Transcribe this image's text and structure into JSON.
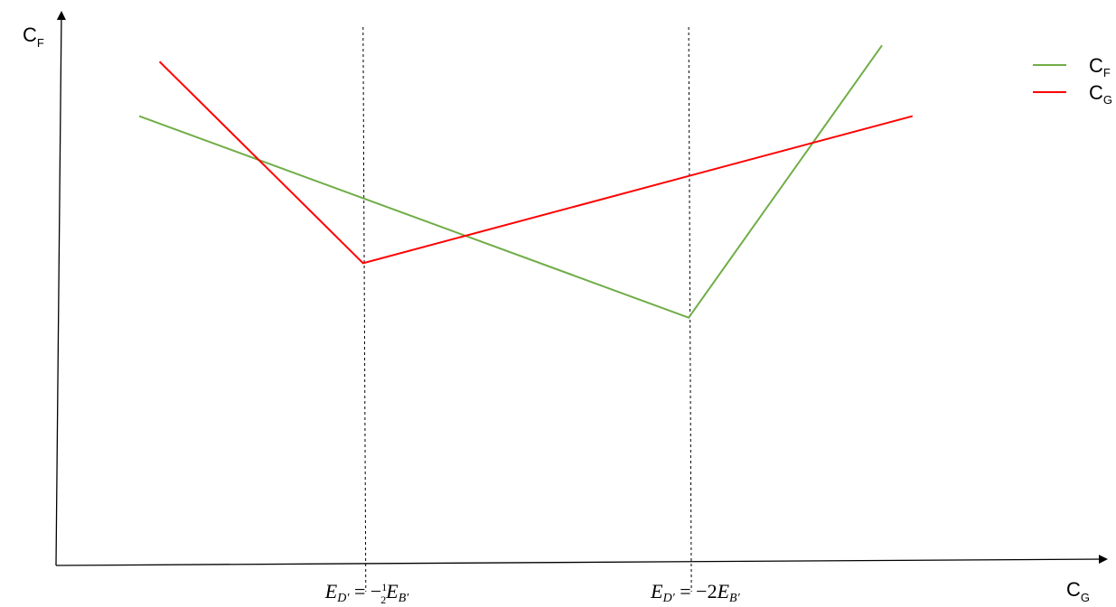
{
  "chart_data": {
    "type": "line",
    "title": "",
    "ylabel": {
      "main": "C",
      "sub": "F"
    },
    "xlabel": {
      "main": "C",
      "sub": "G"
    },
    "grid": false,
    "legend_placement": "top-right",
    "xlim": [
      0,
      100
    ],
    "ylim": [
      0,
      100
    ],
    "reference_lines": [
      {
        "x": 30,
        "label": {
          "lhs": "E",
          "lhs_sub": "D′",
          "eq": " = −",
          "num": "1",
          "den": "2",
          "rhs": "E",
          "rhs_sub": "B′"
        }
      },
      {
        "x": 62,
        "label": {
          "lhs": "E",
          "lhs_sub": "D′",
          "eq": " = −2",
          "num": "",
          "den": "",
          "rhs": "E",
          "rhs_sub": "B′"
        }
      }
    ],
    "series": [
      {
        "name": {
          "main": "C",
          "sub": "F"
        },
        "color": "#70ad47",
        "x": [
          8,
          62,
          81
        ],
        "y": [
          82,
          45,
          95
        ]
      },
      {
        "name": {
          "main": "C",
          "sub": "G"
        },
        "color": "#ff0000",
        "x": [
          10,
          30,
          84
        ],
        "y": [
          92,
          55,
          82
        ]
      }
    ]
  }
}
